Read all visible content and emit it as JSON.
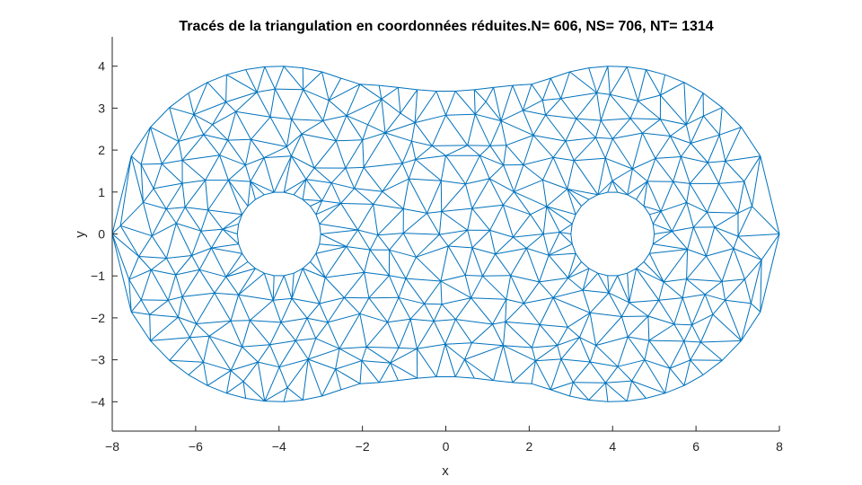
{
  "chart_data": {
    "type": "triangulation-mesh",
    "title": "Tracés de la triangulation en coordonnées réduites.N= 606,  NS= 706,   NT= 1314",
    "xlabel": "x",
    "ylabel": "y",
    "xlim": [
      -8,
      8
    ],
    "ylim": [
      -4.7,
      4.7
    ],
    "xticks": [
      -8,
      -6,
      -4,
      -2,
      0,
      2,
      4,
      6,
      8
    ],
    "yticks": [
      -4,
      -3,
      -2,
      -1,
      0,
      1,
      2,
      3,
      4
    ],
    "grid": false,
    "series_color": "#0072BD",
    "domain": {
      "outer_lobe_centers": [
        [
          -4,
          0
        ],
        [
          4,
          0
        ]
      ],
      "outer_lobe_radius": 4,
      "waist_half_height": 3.4,
      "holes": [
        {
          "center": [
            -4,
            0
          ],
          "radius": 1
        },
        {
          "center": [
            4,
            0
          ],
          "radius": 1
        }
      ]
    },
    "counts": {
      "N": 606,
      "NS": 706,
      "NT": 1314
    }
  }
}
